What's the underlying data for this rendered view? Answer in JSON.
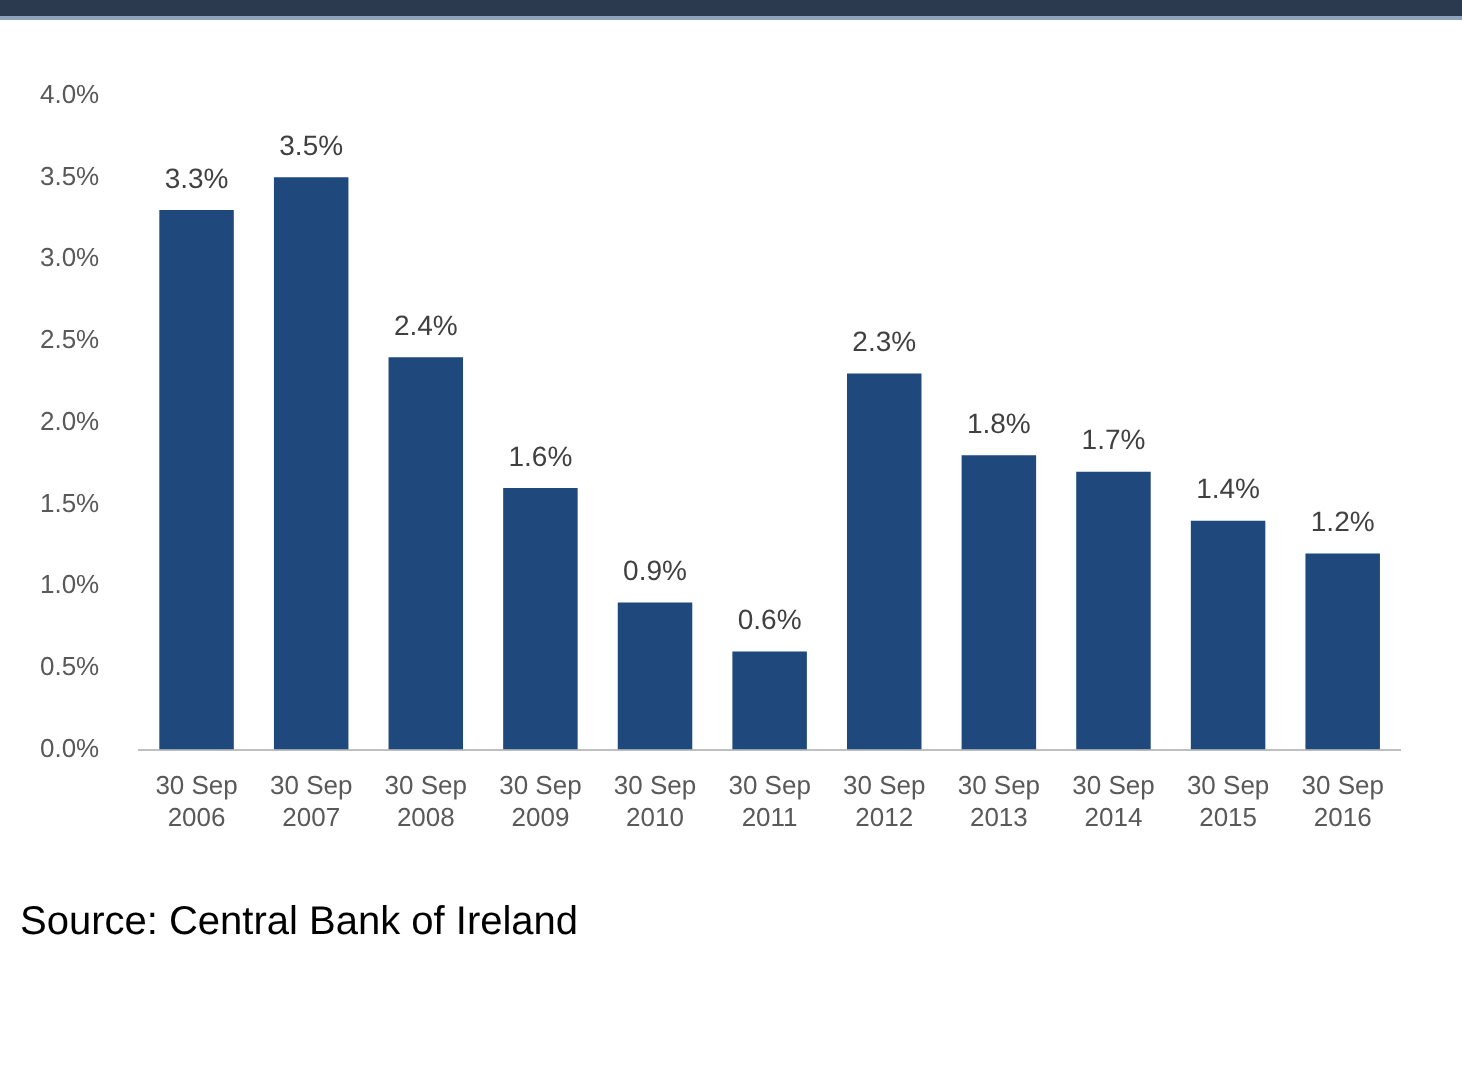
{
  "chart_data": {
    "type": "bar",
    "categories": [
      "30 Sep 2006",
      "30 Sep 2007",
      "30 Sep 2008",
      "30 Sep 2009",
      "30 Sep 2010",
      "30 Sep 2011",
      "30 Sep 2012",
      "30 Sep 2013",
      "30 Sep 2014",
      "30 Sep 2015",
      "30 Sep 2016"
    ],
    "values": [
      3.3,
      3.5,
      2.4,
      1.6,
      0.9,
      0.6,
      2.3,
      1.8,
      1.7,
      1.4,
      1.2
    ],
    "value_labels": [
      "3.3%",
      "3.5%",
      "2.4%",
      "1.6%",
      "0.9%",
      "0.6%",
      "2.3%",
      "1.8%",
      "1.7%",
      "1.4%",
      "1.2%"
    ],
    "color": "#1f497d",
    "ylim": [
      0,
      4
    ],
    "yticks": [
      {
        "value": 0,
        "label": "0.0%"
      },
      {
        "value": 0.5,
        "label": "0.5%"
      },
      {
        "value": 1,
        "label": "1.0%"
      },
      {
        "value": 1.5,
        "label": "1.5%"
      },
      {
        "value": 2,
        "label": "2.0%"
      },
      {
        "value": 2.5,
        "label": "2.5%"
      },
      {
        "value": 3,
        "label": "3.0%"
      },
      {
        "value": 3.5,
        "label": "3.5%"
      },
      {
        "value": 4,
        "label": "4.0%"
      }
    ],
    "grid": false,
    "legend": false,
    "annotations": [
      "Source: Central Bank of Ireland"
    ]
  }
}
